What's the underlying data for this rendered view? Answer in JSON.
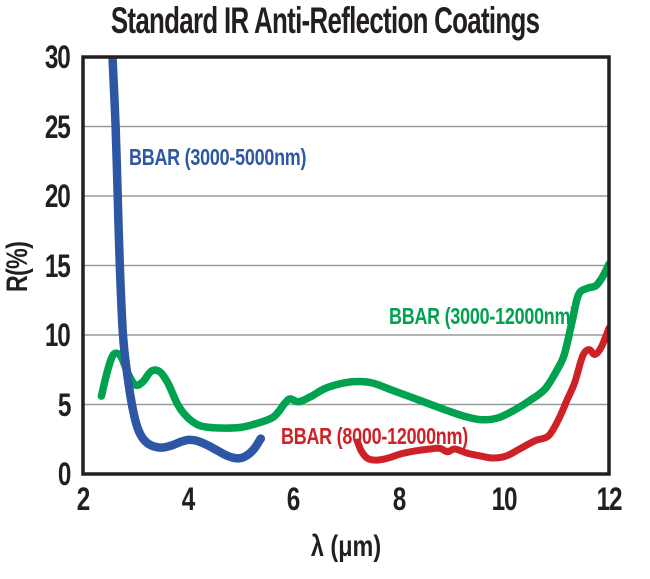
{
  "title": "Standard IR Anti-Reflection Coatings",
  "chart_data": {
    "type": "line",
    "title": "Standard IR Anti-Reflection Coatings",
    "xlabel": "λ (μm)",
    "ylabel": "R(%)",
    "xlim": [
      2,
      12
    ],
    "ylim": [
      0,
      30
    ],
    "x_ticks": [
      2,
      4,
      6,
      8,
      10,
      12
    ],
    "y_ticks": [
      0,
      5,
      10,
      15,
      20,
      25,
      30
    ],
    "grid": "horizontal-only",
    "legend_position": "labels-on-plot",
    "axis_color": "#231f20",
    "gridline_color": "#9a9a9a",
    "background_color": "#ffffff",
    "series": [
      {
        "name": "BBAR (3000-5000nm)",
        "color": "#2d56a4",
        "stroke_width": 8.5,
        "points": [
          [
            2.5,
            34
          ],
          [
            2.56,
            30
          ],
          [
            2.62,
            25
          ],
          [
            2.66,
            20
          ],
          [
            2.7,
            15
          ],
          [
            2.76,
            10
          ],
          [
            2.84,
            7.2
          ],
          [
            2.93,
            5.0
          ],
          [
            3.03,
            3.4
          ],
          [
            3.15,
            2.5
          ],
          [
            3.3,
            2.05
          ],
          [
            3.5,
            1.9
          ],
          [
            3.68,
            2.05
          ],
          [
            3.85,
            2.3
          ],
          [
            4.0,
            2.45
          ],
          [
            4.15,
            2.4
          ],
          [
            4.35,
            2.1
          ],
          [
            4.55,
            1.7
          ],
          [
            4.75,
            1.3
          ],
          [
            4.95,
            1.12
          ],
          [
            5.1,
            1.3
          ],
          [
            5.25,
            1.8
          ],
          [
            5.38,
            2.55
          ]
        ]
      },
      {
        "name": "BBAR (3000-12000nm)",
        "color": "#00a14f",
        "stroke_width": 7.5,
        "points": [
          [
            2.35,
            5.6
          ],
          [
            2.45,
            7.2
          ],
          [
            2.55,
            8.4
          ],
          [
            2.63,
            8.7
          ],
          [
            2.73,
            8.4
          ],
          [
            2.86,
            7.2
          ],
          [
            3.0,
            6.4
          ],
          [
            3.14,
            6.65
          ],
          [
            3.3,
            7.4
          ],
          [
            3.46,
            7.35
          ],
          [
            3.62,
            6.5
          ],
          [
            3.8,
            5.0
          ],
          [
            3.98,
            4.1
          ],
          [
            4.18,
            3.55
          ],
          [
            4.4,
            3.35
          ],
          [
            4.7,
            3.3
          ],
          [
            5.0,
            3.35
          ],
          [
            5.27,
            3.6
          ],
          [
            5.62,
            4.1
          ],
          [
            5.84,
            5.1
          ],
          [
            5.94,
            5.4
          ],
          [
            6.1,
            5.2
          ],
          [
            6.32,
            5.55
          ],
          [
            6.6,
            6.15
          ],
          [
            6.9,
            6.5
          ],
          [
            7.17,
            6.65
          ],
          [
            7.5,
            6.55
          ],
          [
            7.9,
            6.0
          ],
          [
            8.4,
            5.3
          ],
          [
            8.9,
            4.6
          ],
          [
            9.3,
            4.1
          ],
          [
            9.6,
            3.9
          ],
          [
            9.9,
            4.05
          ],
          [
            10.2,
            4.6
          ],
          [
            10.5,
            5.3
          ],
          [
            10.78,
            6.1
          ],
          [
            11.0,
            7.4
          ],
          [
            11.15,
            8.6
          ],
          [
            11.3,
            11.0
          ],
          [
            11.42,
            12.9
          ],
          [
            11.58,
            13.35
          ],
          [
            11.75,
            13.55
          ],
          [
            11.88,
            14.2
          ],
          [
            12.0,
            15.1
          ]
        ]
      },
      {
        "name": "BBAR (8000-12000nm)",
        "color": "#ce2027",
        "stroke_width": 7,
        "points": [
          [
            7.22,
            2.3
          ],
          [
            7.3,
            1.6
          ],
          [
            7.42,
            1.1
          ],
          [
            7.6,
            1.0
          ],
          [
            7.8,
            1.15
          ],
          [
            8.05,
            1.45
          ],
          [
            8.3,
            1.65
          ],
          [
            8.6,
            1.8
          ],
          [
            8.78,
            1.85
          ],
          [
            8.93,
            1.6
          ],
          [
            9.07,
            1.8
          ],
          [
            9.3,
            1.5
          ],
          [
            9.55,
            1.3
          ],
          [
            9.8,
            1.15
          ],
          [
            10.05,
            1.3
          ],
          [
            10.3,
            1.8
          ],
          [
            10.6,
            2.4
          ],
          [
            10.85,
            2.75
          ],
          [
            11.05,
            4.0
          ],
          [
            11.2,
            5.3
          ],
          [
            11.35,
            6.6
          ],
          [
            11.5,
            8.5
          ],
          [
            11.62,
            8.95
          ],
          [
            11.73,
            8.6
          ],
          [
            11.85,
            9.1
          ],
          [
            12.0,
            10.5
          ]
        ]
      }
    ]
  }
}
